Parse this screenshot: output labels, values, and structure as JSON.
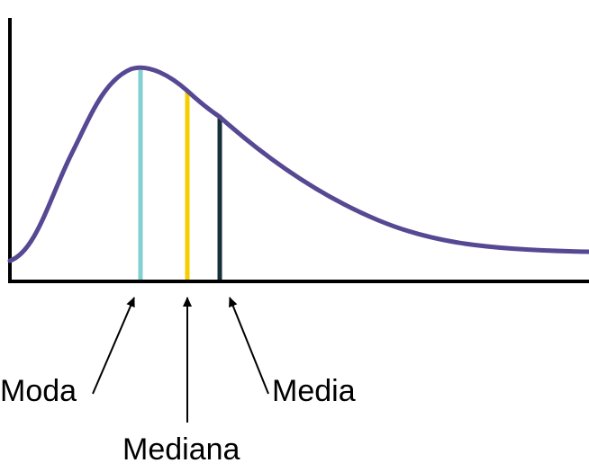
{
  "labels": {
    "mode": "Moda",
    "median": "Mediana",
    "mean": "Media"
  },
  "colors": {
    "curve": "#574893",
    "mode_line": "#82D0D2",
    "median_line": "#F5CD00",
    "mean_line": "#17303A",
    "axes": "#000000",
    "arrows": "#000000"
  },
  "curve_shape": "right-skewed (positive skew) distribution"
}
